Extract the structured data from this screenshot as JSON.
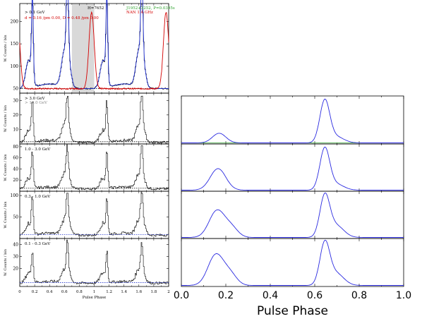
{
  "chart_data": [
    {
      "type": "line",
      "panel": "left-top",
      "title": "",
      "ylabel": "W. Counts / bin",
      "xlim": [
        0,
        2
      ],
      "ylim": [
        40,
        240
      ],
      "yticks": [
        50,
        100,
        150,
        200
      ],
      "annotations": [
        {
          "text": "> 0.1 GeV",
          "color": "#000000"
        },
        {
          "text": "d = 0.16 /pm 0.00,  D = 0.48 /pm 0.00",
          "color": "#d40000"
        },
        {
          "text": "H=7652",
          "color": "#000000"
        },
        {
          "text": "J1952+3252, P=0.0395s",
          "color": "#2ca02c"
        },
        {
          "text": "NAN 1.4 GHz",
          "color": "#d40000"
        }
      ],
      "shaded_region": [
        0.7,
        1.0
      ],
      "series": [
        {
          "peaks": [
            0.17,
            0.63
          ],
          "color": "#1f2fd0"
        },
        {
          "peaks": [
            0.96
          ],
          "color": "#d40000"
        }
      ]
    },
    {
      "type": "line",
      "panel": "left-2",
      "ylabel": "W. Counts / bin",
      "xlim": [
        0,
        2
      ],
      "ylim": [
        0,
        35
      ],
      "yticks": [
        10,
        20,
        30
      ],
      "annotations": [
        {
          "text": "> 3.0 GeV",
          "color": "#000000"
        },
        {
          "text": "> 10.0 GeV",
          "color": "#888888"
        }
      ]
    },
    {
      "type": "line",
      "panel": "left-3",
      "ylabel": "W. Counts / bin",
      "xlim": [
        0,
        2
      ],
      "ylim": [
        0,
        85
      ],
      "yticks": [
        20,
        40,
        60,
        80
      ],
      "annotations": [
        {
          "text": "1.0 - 3.0 GeV",
          "color": "#000000"
        }
      ]
    },
    {
      "type": "line",
      "panel": "left-4",
      "ylabel": "W. Counts / bin",
      "xlim": [
        0,
        2
      ],
      "ylim": [
        0,
        110
      ],
      "yticks": [
        50,
        100
      ],
      "annotations": [
        {
          "text": "0.3 - 1.0 GeV",
          "color": "#000000"
        }
      ]
    },
    {
      "type": "line",
      "panel": "left-5",
      "ylabel": "W. Counts / bin",
      "xlabel": "Pulse Phase",
      "xlim": [
        0,
        2
      ],
      "xticks": [
        0,
        0.2,
        0.4,
        0.6,
        0.8,
        1,
        1.2,
        1.4,
        1.6,
        1.8,
        2
      ],
      "ylim": [
        5,
        45
      ],
      "yticks": [
        20,
        30,
        40
      ],
      "annotations": [
        {
          "text": "0.1 - 0.3 GeV",
          "color": "#000000"
        }
      ]
    },
    {
      "type": "line",
      "panel": "right-stack",
      "xlabel": "Pulse Phase",
      "xlim": [
        0,
        1
      ],
      "xticks": [
        "0.0",
        "0.2",
        "0.4",
        "0.6",
        "0.8",
        "1.0"
      ],
      "series": [
        {
          "panel": 1,
          "peaks": [
            {
              "x": 0.17,
              "height": 0.22
            },
            {
              "x": 0.645,
              "height": 0.95
            }
          ]
        },
        {
          "panel": 2,
          "peaks": [
            {
              "x": 0.165,
              "height": 0.5
            },
            {
              "x": 0.645,
              "height": 0.95
            }
          ]
        },
        {
          "panel": 3,
          "peaks": [
            {
              "x": 0.16,
              "height": 0.62
            },
            {
              "x": 0.645,
              "height": 0.93
            }
          ]
        },
        {
          "panel": 4,
          "peaks": [
            {
              "x": 0.155,
              "height": 0.7
            },
            {
              "x": 0.645,
              "height": 0.93
            }
          ]
        }
      ]
    }
  ]
}
